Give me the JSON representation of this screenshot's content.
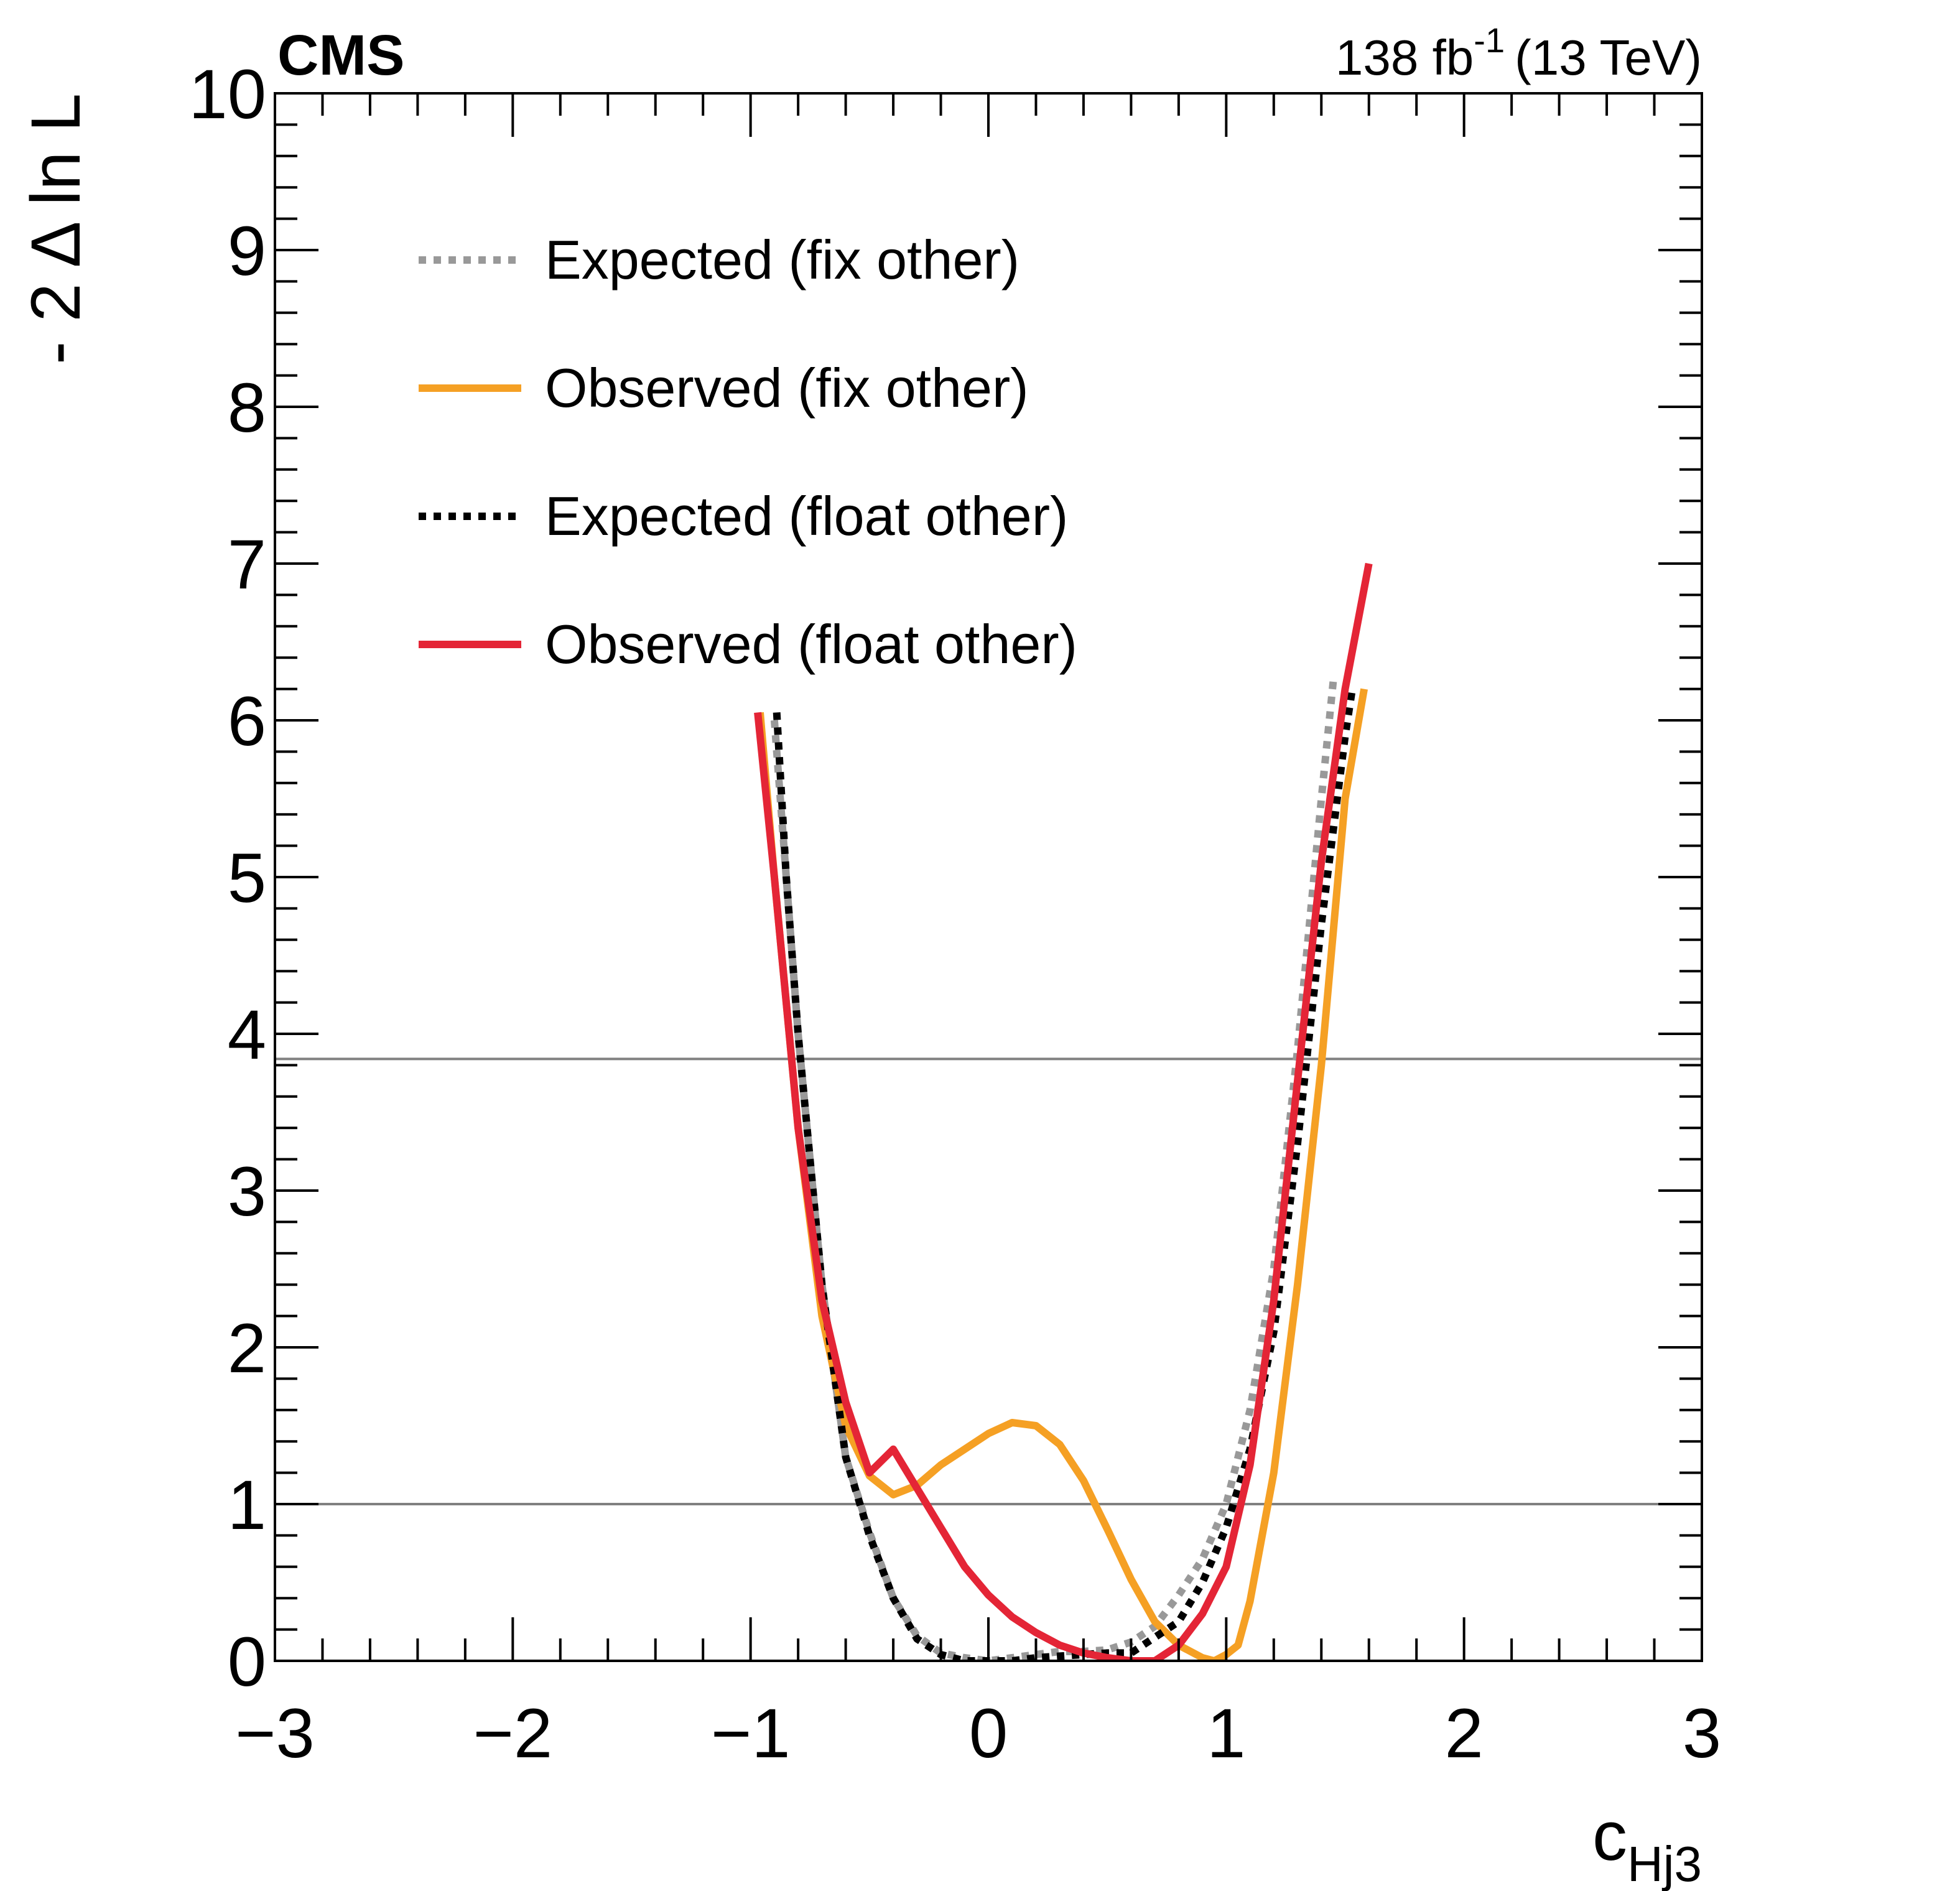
{
  "chart_data": {
    "type": "line",
    "experiment": "CMS",
    "lumi_label": "138 fb",
    "lumi_superscript": "-1",
    "energy_label": "(13 TeV)",
    "ylabel": "- 2 Δ ln L",
    "xlabel": "c",
    "xlabel_subscript": "Hj3",
    "xlim": [
      -3,
      3
    ],
    "ylim": [
      0,
      10
    ],
    "x_major_ticks": [
      -3,
      -2,
      -1,
      0,
      1,
      2,
      3
    ],
    "x_tick_labels": [
      "−3",
      "−2",
      "−1",
      "0",
      "1",
      "2",
      "3"
    ],
    "y_major_ticks": [
      0,
      1,
      2,
      3,
      4,
      5,
      6,
      7,
      8,
      9,
      10
    ],
    "y_tick_labels": [
      "0",
      "1",
      "2",
      "3",
      "4",
      "5",
      "6",
      "7",
      "8",
      "9",
      "10"
    ],
    "x_minor_step": 0.2,
    "y_minor_step": 0.2,
    "legend_position": "top-left",
    "reference_lines": [
      1.0,
      3.84
    ],
    "series": [
      {
        "name": "Expected (fix other)",
        "color": "#999999",
        "style": "dotted",
        "x": [
          -0.9,
          -0.85,
          -0.8,
          -0.7,
          -0.6,
          -0.5,
          -0.4,
          -0.3,
          -0.2,
          -0.1,
          0.0,
          0.1,
          0.2,
          0.3,
          0.4,
          0.5,
          0.6,
          0.7,
          0.8,
          0.9,
          1.0,
          1.1,
          1.2,
          1.3,
          1.4,
          1.45
        ],
        "y": [
          6.0,
          5.0,
          4.0,
          2.4,
          1.3,
          0.82,
          0.4,
          0.16,
          0.05,
          0.02,
          0.0,
          0.02,
          0.04,
          0.06,
          0.06,
          0.07,
          0.12,
          0.22,
          0.42,
          0.65,
          1.0,
          1.6,
          2.5,
          3.9,
          5.5,
          6.25
        ]
      },
      {
        "name": "Observed (fix other)",
        "color": "#f5a024",
        "style": "solid",
        "x": [
          -0.96,
          -0.9,
          -0.8,
          -0.7,
          -0.6,
          -0.5,
          -0.4,
          -0.3,
          -0.2,
          -0.1,
          0.0,
          0.1,
          0.2,
          0.3,
          0.4,
          0.5,
          0.6,
          0.7,
          0.8,
          0.9,
          0.95,
          1.0,
          1.05,
          1.1,
          1.2,
          1.3,
          1.4,
          1.5,
          1.58
        ],
        "y": [
          6.05,
          5.0,
          3.4,
          2.2,
          1.5,
          1.18,
          1.06,
          1.12,
          1.25,
          1.35,
          1.45,
          1.52,
          1.5,
          1.38,
          1.15,
          0.84,
          0.52,
          0.25,
          0.1,
          0.02,
          0.0,
          0.04,
          0.1,
          0.38,
          1.2,
          2.4,
          3.8,
          5.5,
          6.2
        ]
      },
      {
        "name": "Expected (float other)",
        "color": "#000000",
        "style": "dotted",
        "x": [
          -0.89,
          -0.85,
          -0.8,
          -0.7,
          -0.6,
          -0.5,
          -0.4,
          -0.3,
          -0.2,
          -0.1,
          0.0,
          0.1,
          0.2,
          0.3,
          0.4,
          0.5,
          0.6,
          0.7,
          0.8,
          0.9,
          1.0,
          1.1,
          1.2,
          1.3,
          1.4,
          1.5,
          1.53
        ],
        "y": [
          6.05,
          5.0,
          4.0,
          2.4,
          1.3,
          0.8,
          0.4,
          0.14,
          0.04,
          0.0,
          0.0,
          0.0,
          0.02,
          0.03,
          0.04,
          0.05,
          0.05,
          0.15,
          0.25,
          0.5,
          0.85,
          1.35,
          2.1,
          3.3,
          4.7,
          5.9,
          6.2
        ]
      },
      {
        "name": "Observed (float other)",
        "color": "#e42536",
        "style": "solid",
        "x": [
          -0.97,
          -0.9,
          -0.8,
          -0.7,
          -0.6,
          -0.5,
          -0.4,
          -0.3,
          -0.2,
          -0.1,
          0.0,
          0.1,
          0.2,
          0.3,
          0.4,
          0.5,
          0.6,
          0.7,
          0.8,
          0.9,
          1.0,
          1.1,
          1.2,
          1.3,
          1.4,
          1.5,
          1.6
        ],
        "y": [
          6.05,
          5.0,
          3.4,
          2.3,
          1.65,
          1.2,
          1.35,
          1.1,
          0.85,
          0.6,
          0.42,
          0.28,
          0.18,
          0.1,
          0.05,
          0.02,
          0.0,
          0.0,
          0.1,
          0.3,
          0.6,
          1.25,
          2.3,
          3.7,
          5.1,
          6.2,
          7.0
        ]
      }
    ]
  }
}
